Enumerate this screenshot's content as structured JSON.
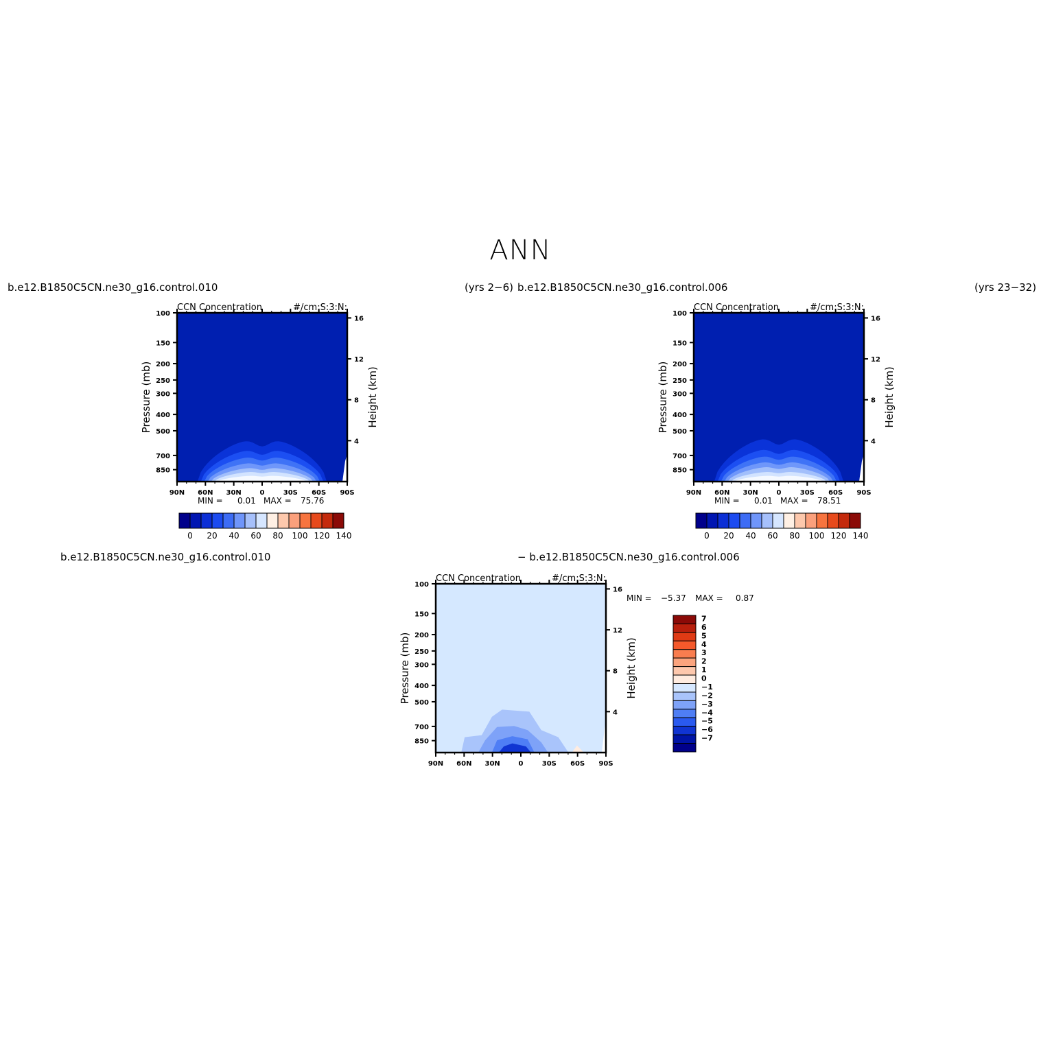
{
  "page": {
    "title": "ANN",
    "panel1_case": "b.e12.B1850C5CN.ne30_g16.control.010",
    "panel1_years": "(yrs 2−6)",
    "panel2_case": "b.e12.B1850C5CN.ne30_g16.control.006",
    "panel2_years": "(yrs 23−32)",
    "diff_case_a": "b.e12.B1850C5CN.ne30_g16.control.010",
    "diff_case_b": "− b.e12.B1850C5CN.ne30_g16.control.006"
  },
  "colors": {
    "background_blue": "#001fb0",
    "diff_background": "#d5e8ff",
    "line": "#000000"
  },
  "chart_data": [
    {
      "type": "heatmap",
      "title": "CCN Concentration",
      "units": "#/cm:S:3:N:",
      "ylabel": "Pressure (mb)",
      "y2label": "Height (km)",
      "x_ticks": [
        "90N",
        "60N",
        "30N",
        "0",
        "30S",
        "60S",
        "90S"
      ],
      "y_ticks": [
        "100",
        "150",
        "200",
        "250",
        "300",
        "400",
        "500",
        "700",
        "850"
      ],
      "y2_ticks": [
        "16",
        "12",
        "8",
        "4"
      ],
      "min_label": "MIN =",
      "min": "0.01",
      "max_label": "MAX =",
      "max": "75.76",
      "colorbar_labels": [
        "0",
        "20",
        "40",
        "60",
        "80",
        "100",
        "120",
        "140"
      ],
      "colorbar_colors": [
        "#00008b",
        "#0016b2",
        "#0c2fd6",
        "#1c4bf0",
        "#3d6cf5",
        "#6f95fa",
        "#a6c0fb",
        "#d6e6ff",
        "#fff0e4",
        "#fdc8ac",
        "#fba07c",
        "#f7743f",
        "#e74a1c",
        "#c42a0c",
        "#8b0a07"
      ],
      "contour_levels": [
        {
          "color": "#0a33d8",
          "peak_height_km": 4.2
        },
        {
          "color": "#1c4ff2",
          "peak_height_km": 3.2
        },
        {
          "color": "#3f73f6",
          "peak_height_km": 2.5
        },
        {
          "color": "#6f97fa",
          "peak_height_km": 1.9
        },
        {
          "color": "#a2bffb",
          "peak_height_km": 1.4
        },
        {
          "color": "#d2e3ff",
          "peak_height_km": 1.0
        },
        {
          "color": "#f5f9ff",
          "peak_height_km": 0.6
        }
      ]
    },
    {
      "type": "heatmap",
      "title": "CCN Concentration",
      "units": "#/cm:S:3:N:",
      "ylabel": "Pressure (mb)",
      "y2label": "Height (km)",
      "x_ticks": [
        "90N",
        "60N",
        "30N",
        "0",
        "30S",
        "60S",
        "90S"
      ],
      "y_ticks": [
        "100",
        "150",
        "200",
        "250",
        "300",
        "400",
        "500",
        "700",
        "850"
      ],
      "y2_ticks": [
        "16",
        "12",
        "8",
        "4"
      ],
      "min_label": "MIN =",
      "min": "0.01",
      "max_label": "MAX =",
      "max": "78.51",
      "colorbar_labels": [
        "0",
        "20",
        "40",
        "60",
        "80",
        "100",
        "120",
        "140"
      ],
      "colorbar_colors": [
        "#00008b",
        "#0016b2",
        "#0c2fd6",
        "#1c4bf0",
        "#3d6cf5",
        "#6f95fa",
        "#a6c0fb",
        "#d6e6ff",
        "#fff0e4",
        "#fdc8ac",
        "#fba07c",
        "#f7743f",
        "#e74a1c",
        "#c42a0c",
        "#8b0a07"
      ],
      "contour_levels": [
        {
          "color": "#0a33d8",
          "peak_height_km": 4.4
        },
        {
          "color": "#1c4ff2",
          "peak_height_km": 3.3
        },
        {
          "color": "#3f73f6",
          "peak_height_km": 2.6
        },
        {
          "color": "#6f97fa",
          "peak_height_km": 2.0
        },
        {
          "color": "#a2bffb",
          "peak_height_km": 1.5
        },
        {
          "color": "#d2e3ff",
          "peak_height_km": 1.0
        },
        {
          "color": "#f5f9ff",
          "peak_height_km": 0.6
        }
      ]
    },
    {
      "type": "heatmap",
      "title": "CCN Concentration",
      "units": "#/cm:S:3:N:",
      "ylabel": "Pressure (mb)",
      "y2label": "Height (km)",
      "x_ticks": [
        "90N",
        "60N",
        "30N",
        "0",
        "30S",
        "60S",
        "90S"
      ],
      "y_ticks": [
        "100",
        "150",
        "200",
        "250",
        "300",
        "400",
        "500",
        "700",
        "850"
      ],
      "y2_ticks": [
        "16",
        "12",
        "8",
        "4"
      ],
      "min_label": "MIN =",
      "min": "−5.37",
      "max_label": "MAX =",
      "max": "0.87",
      "colorbar_labels": [
        "7",
        "6",
        "5",
        "4",
        "3",
        "2",
        "1",
        "0",
        "−1",
        "−2",
        "−3",
        "−4",
        "−5",
        "−6",
        "−7"
      ],
      "colorbar_colors": [
        "#8b0a07",
        "#b81f0c",
        "#e03a14",
        "#f5592b",
        "#f97d4f",
        "#fba47e",
        "#fdc8ad",
        "#ffece0",
        "#d6e8ff",
        "#a9c4fb",
        "#7ea2f8",
        "#4f7ef5",
        "#2a5af0",
        "#1034d2",
        "#0014a6",
        "#00008b"
      ]
    }
  ]
}
